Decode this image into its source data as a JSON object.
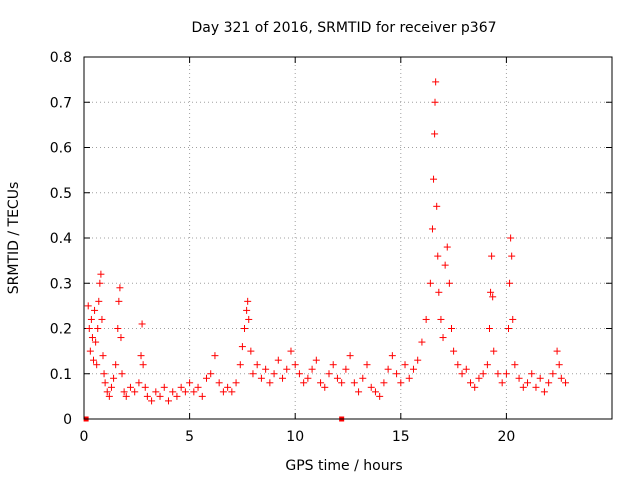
{
  "chart_data": {
    "type": "scatter",
    "title": "Day 321 of 2016, SRMTID for receiver p367",
    "xlabel": "GPS time / hours",
    "ylabel": "SRMTID / TECUs",
    "xlim": [
      0,
      25
    ],
    "ylim": [
      0,
      0.8
    ],
    "x_ticks": [
      0,
      5,
      10,
      15,
      20
    ],
    "y_ticks": [
      0,
      0.1,
      0.2,
      0.3,
      0.4,
      0.5,
      0.6,
      0.7,
      0.8
    ],
    "x_tick_labels": [
      "0",
      "5",
      "10",
      "15",
      "20"
    ],
    "y_tick_labels": [
      "0",
      "0.1",
      "0.2",
      "0.3",
      "0.4",
      "0.5",
      "0.6",
      "0.7",
      "0.8"
    ],
    "grid": true,
    "marker": "plus",
    "color": "#ff0000",
    "zero_markers_x": [
      0.1,
      12.2
    ],
    "series": [
      {
        "name": "p367",
        "points": [
          [
            0.2,
            0.25
          ],
          [
            0.25,
            0.2
          ],
          [
            0.3,
            0.15
          ],
          [
            0.35,
            0.22
          ],
          [
            0.4,
            0.18
          ],
          [
            0.45,
            0.13
          ],
          [
            0.5,
            0.24
          ],
          [
            0.55,
            0.17
          ],
          [
            0.6,
            0.12
          ],
          [
            0.65,
            0.2
          ],
          [
            0.7,
            0.26
          ],
          [
            0.75,
            0.3
          ],
          [
            0.8,
            0.32
          ],
          [
            0.85,
            0.22
          ],
          [
            0.9,
            0.14
          ],
          [
            0.95,
            0.1
          ],
          [
            1.0,
            0.08
          ],
          [
            1.1,
            0.06
          ],
          [
            1.2,
            0.05
          ],
          [
            1.3,
            0.07
          ],
          [
            1.4,
            0.09
          ],
          [
            1.5,
            0.12
          ],
          [
            1.6,
            0.2
          ],
          [
            1.65,
            0.26
          ],
          [
            1.7,
            0.29
          ],
          [
            1.75,
            0.18
          ],
          [
            1.8,
            0.1
          ],
          [
            1.9,
            0.06
          ],
          [
            2.0,
            0.05
          ],
          [
            2.2,
            0.07
          ],
          [
            2.4,
            0.06
          ],
          [
            2.6,
            0.08
          ],
          [
            2.7,
            0.14
          ],
          [
            2.75,
            0.21
          ],
          [
            2.8,
            0.12
          ],
          [
            2.9,
            0.07
          ],
          [
            3.0,
            0.05
          ],
          [
            3.2,
            0.04
          ],
          [
            3.4,
            0.06
          ],
          [
            3.6,
            0.05
          ],
          [
            3.8,
            0.07
          ],
          [
            4.0,
            0.04
          ],
          [
            4.2,
            0.06
          ],
          [
            4.4,
            0.05
          ],
          [
            4.6,
            0.07
          ],
          [
            4.8,
            0.06
          ],
          [
            5.0,
            0.08
          ],
          [
            5.2,
            0.06
          ],
          [
            5.4,
            0.07
          ],
          [
            5.6,
            0.05
          ],
          [
            5.8,
            0.09
          ],
          [
            6.0,
            0.1
          ],
          [
            6.2,
            0.14
          ],
          [
            6.4,
            0.08
          ],
          [
            6.6,
            0.06
          ],
          [
            6.8,
            0.07
          ],
          [
            7.0,
            0.06
          ],
          [
            7.2,
            0.08
          ],
          [
            7.4,
            0.12
          ],
          [
            7.5,
            0.16
          ],
          [
            7.6,
            0.2
          ],
          [
            7.7,
            0.24
          ],
          [
            7.75,
            0.26
          ],
          [
            7.8,
            0.22
          ],
          [
            7.9,
            0.15
          ],
          [
            8.0,
            0.1
          ],
          [
            8.2,
            0.12
          ],
          [
            8.4,
            0.09
          ],
          [
            8.6,
            0.11
          ],
          [
            8.8,
            0.08
          ],
          [
            9.0,
            0.1
          ],
          [
            9.2,
            0.13
          ],
          [
            9.4,
            0.09
          ],
          [
            9.6,
            0.11
          ],
          [
            9.8,
            0.15
          ],
          [
            10.0,
            0.12
          ],
          [
            10.2,
            0.1
          ],
          [
            10.4,
            0.08
          ],
          [
            10.6,
            0.09
          ],
          [
            10.8,
            0.11
          ],
          [
            11.0,
            0.13
          ],
          [
            11.2,
            0.08
          ],
          [
            11.4,
            0.07
          ],
          [
            11.6,
            0.1
          ],
          [
            11.8,
            0.12
          ],
          [
            12.0,
            0.09
          ],
          [
            12.2,
            0.08
          ],
          [
            12.4,
            0.11
          ],
          [
            12.6,
            0.14
          ],
          [
            12.8,
            0.08
          ],
          [
            13.0,
            0.06
          ],
          [
            13.2,
            0.09
          ],
          [
            13.4,
            0.12
          ],
          [
            13.6,
            0.07
          ],
          [
            13.8,
            0.06
          ],
          [
            14.0,
            0.05
          ],
          [
            14.2,
            0.08
          ],
          [
            14.4,
            0.11
          ],
          [
            14.6,
            0.14
          ],
          [
            14.8,
            0.1
          ],
          [
            15.0,
            0.08
          ],
          [
            15.2,
            0.12
          ],
          [
            15.4,
            0.09
          ],
          [
            15.6,
            0.11
          ],
          [
            15.8,
            0.13
          ],
          [
            16.0,
            0.17
          ],
          [
            16.2,
            0.22
          ],
          [
            16.4,
            0.3
          ],
          [
            16.5,
            0.42
          ],
          [
            16.55,
            0.53
          ],
          [
            16.6,
            0.63
          ],
          [
            16.62,
            0.7
          ],
          [
            16.65,
            0.745
          ],
          [
            16.7,
            0.47
          ],
          [
            16.75,
            0.36
          ],
          [
            16.8,
            0.28
          ],
          [
            16.9,
            0.22
          ],
          [
            17.0,
            0.18
          ],
          [
            17.1,
            0.34
          ],
          [
            17.2,
            0.38
          ],
          [
            17.3,
            0.3
          ],
          [
            17.4,
            0.2
          ],
          [
            17.5,
            0.15
          ],
          [
            17.7,
            0.12
          ],
          [
            17.9,
            0.1
          ],
          [
            18.1,
            0.11
          ],
          [
            18.3,
            0.08
          ],
          [
            18.5,
            0.07
          ],
          [
            18.7,
            0.09
          ],
          [
            18.9,
            0.1
          ],
          [
            19.1,
            0.12
          ],
          [
            19.2,
            0.2
          ],
          [
            19.25,
            0.28
          ],
          [
            19.3,
            0.36
          ],
          [
            19.35,
            0.27
          ],
          [
            19.4,
            0.15
          ],
          [
            19.6,
            0.1
          ],
          [
            19.8,
            0.08
          ],
          [
            20.0,
            0.1
          ],
          [
            20.1,
            0.2
          ],
          [
            20.15,
            0.3
          ],
          [
            20.2,
            0.4
          ],
          [
            20.25,
            0.36
          ],
          [
            20.3,
            0.22
          ],
          [
            20.4,
            0.12
          ],
          [
            20.6,
            0.09
          ],
          [
            20.8,
            0.07
          ],
          [
            21.0,
            0.08
          ],
          [
            21.2,
            0.1
          ],
          [
            21.4,
            0.07
          ],
          [
            21.6,
            0.09
          ],
          [
            21.8,
            0.06
          ],
          [
            22.0,
            0.08
          ],
          [
            22.2,
            0.1
          ],
          [
            22.4,
            0.15
          ],
          [
            22.5,
            0.12
          ],
          [
            22.6,
            0.09
          ],
          [
            22.8,
            0.08
          ]
        ]
      }
    ]
  }
}
